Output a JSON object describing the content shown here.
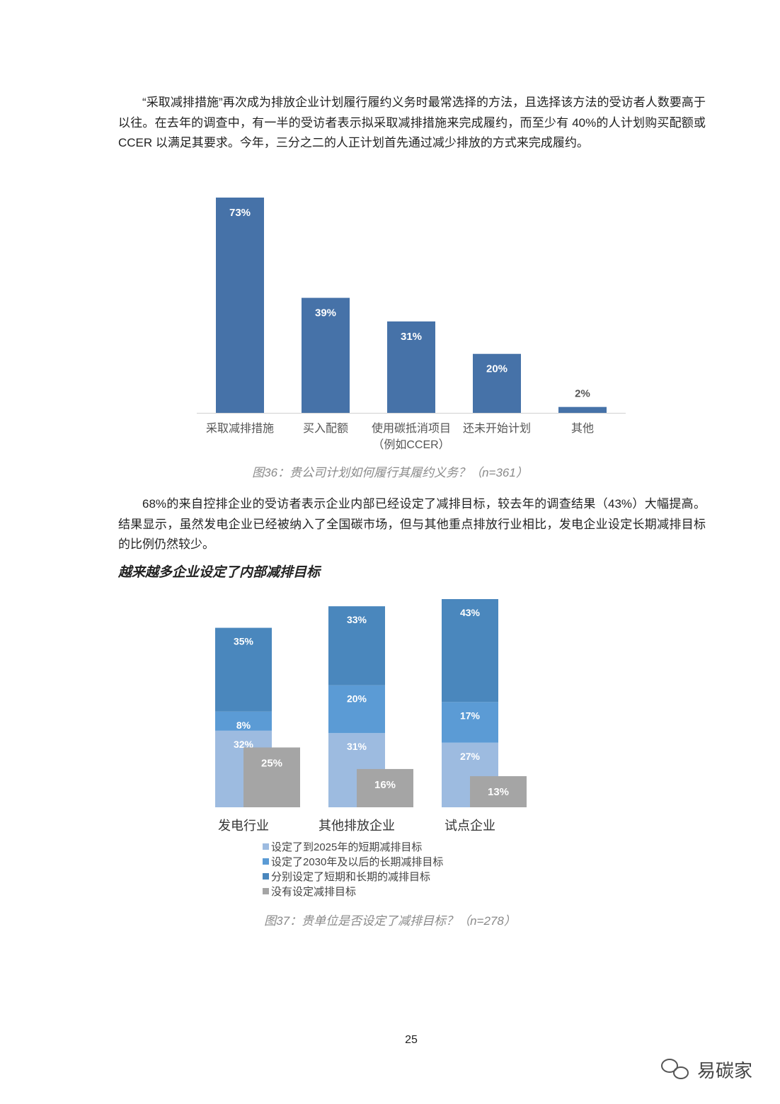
{
  "paragraphs": [
    "“采取减排措施”再次成为排放企业计划履行履约义务时最常选择的方法，且选择该方法的受访者人数要高于以往。在去年的调查中，有一半的受访者表示拟采取减排措施来完成履约，而至少有 40%的人计划购买配额或 CCER 以满足其要求。今年，三分之二的人正计划首先通过减少排放的方式来完成履约。",
    "68%的来自控排企业的受访者表示企业内部已经设定了减排目标，较去年的调查结果（43%）大幅提高。结果显示，虽然发电企业已经被纳入了全国碳市场，但与其他重点排放行业相比，发电企业设定长期减排目标的比例仍然较少。"
  ],
  "section_title": "越来越多企业设定了内部减排目标",
  "chart_data": [
    {
      "type": "bar",
      "categories": [
        "采取减排措施",
        "买入配额",
        "使用碳抵消项目\n（例如CCER）",
        "还未开始计划",
        "其他"
      ],
      "values": [
        73,
        39,
        31,
        20,
        2
      ],
      "value_labels": [
        "73%",
        "39%",
        "31%",
        "20%",
        "2%"
      ],
      "color": "#4672a8",
      "caption": "图36：贵公司计划如何履行其履约义务？（n=361）"
    },
    {
      "type": "stacked_bar",
      "categories": [
        "发电行业",
        "其他排放企业",
        "试点企业"
      ],
      "series": [
        {
          "name": "设定了到2025年的短期减排目标",
          "color": "#9dbbe0",
          "stacked": true,
          "values": [
            32,
            31,
            27
          ],
          "value_labels": [
            "32%",
            "31%",
            "27%"
          ]
        },
        {
          "name": "设定了2030年及以后的长期减排目标",
          "color": "#5b9bd5",
          "stacked": true,
          "values": [
            8,
            20,
            17
          ],
          "value_labels": [
            "8%",
            "20%",
            "17%"
          ]
        },
        {
          "name": "分别设定了短期和长期的减排目标",
          "color": "#4a87bd",
          "stacked": true,
          "values": [
            35,
            33,
            43
          ],
          "value_labels": [
            "35%",
            "33%",
            "43%"
          ]
        },
        {
          "name": "没有设定减排目标",
          "color": "#a5a5a5",
          "stacked": false,
          "values": [
            25,
            16,
            13
          ],
          "value_labels": [
            "25%",
            "16%",
            "13%"
          ]
        }
      ],
      "caption": "图37：贵单位是否设定了减排目标？（n=278）"
    }
  ],
  "page_number": "25",
  "watermark": "易碳家"
}
